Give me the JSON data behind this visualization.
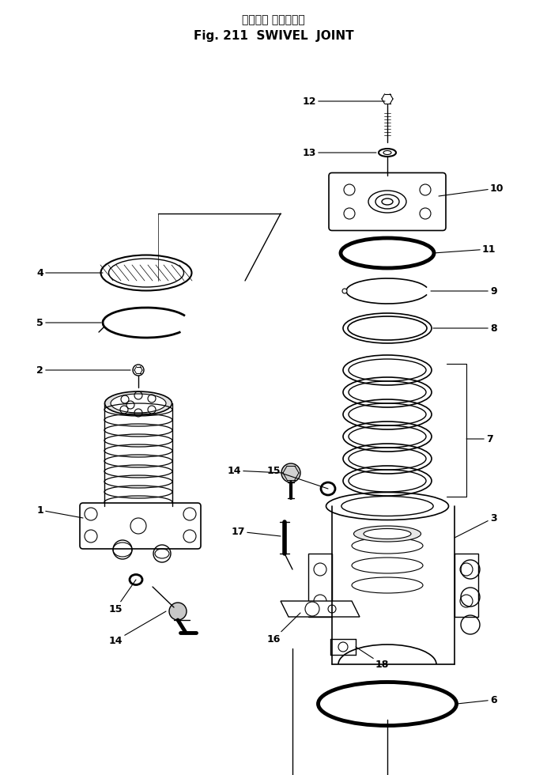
{
  "title_japanese": "スイベル ジョイント",
  "title_english": "Fig. 211  SWIVEL  JOINT",
  "bg_color": "#ffffff",
  "line_color": "#000000",
  "figsize": [
    6.92,
    9.8
  ],
  "dpi": 100
}
